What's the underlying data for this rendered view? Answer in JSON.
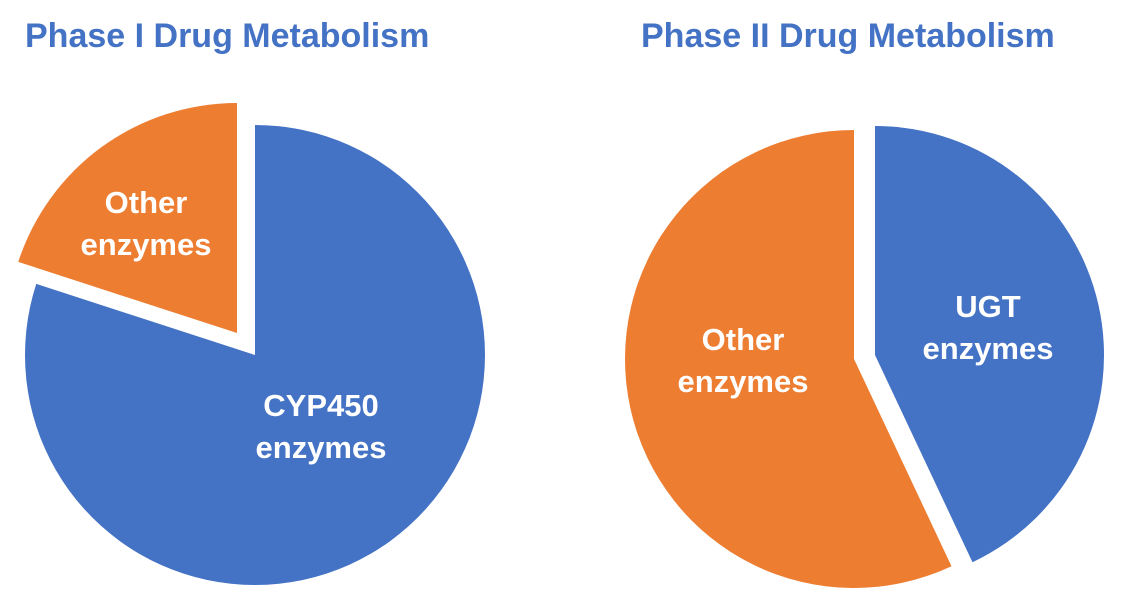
{
  "colors": {
    "blue": "#4472c4",
    "orange": "#ed7d31",
    "title": "#4472c4",
    "label": "#ffffff",
    "background": "#ffffff"
  },
  "chart_data": [
    {
      "type": "pie",
      "title": "Phase I Drug Metabolism",
      "categories": [
        "CYP450 enzymes",
        "Other enzymes"
      ],
      "values": [
        80,
        20
      ],
      "colors": [
        "#4472c4",
        "#ed7d31"
      ],
      "exploded": "Other enzymes",
      "start_angle_deg": 0,
      "direction": "clockwise",
      "labels": [
        {
          "line1": "CYP450",
          "line2": "enzymes"
        },
        {
          "line1": "Other",
          "line2": "enzymes"
        }
      ],
      "legend": "none (labels inside slices)"
    },
    {
      "type": "pie",
      "title": "Phase II Drug Metabolism",
      "categories": [
        "UGT enzymes",
        "Other enzymes"
      ],
      "values": [
        43,
        57
      ],
      "colors": [
        "#4472c4",
        "#ed7d31"
      ],
      "exploded": "both (separated gap)",
      "start_angle_deg": 0,
      "direction": "clockwise",
      "labels": [
        {
          "line1": "UGT",
          "line2": "enzymes"
        },
        {
          "line1": "Other",
          "line2": "enzymes"
        }
      ],
      "legend": "none (labels inside slices)"
    }
  ]
}
